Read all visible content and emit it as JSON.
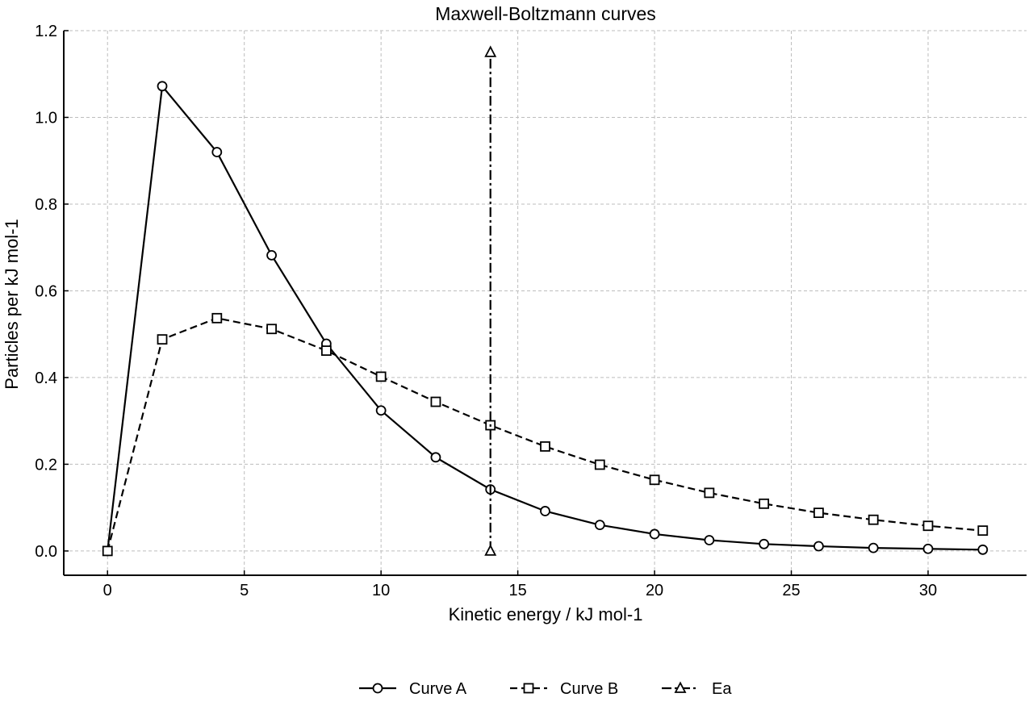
{
  "chart_data": {
    "type": "line",
    "title": "Maxwell-Boltzmann curves",
    "xlabel": "Kinetic energy / kJ mol-1",
    "ylabel": "Particles per kJ mol-1",
    "xlim": [
      -1.6,
      33.6
    ],
    "ylim": [
      -0.056,
      1.2
    ],
    "xticks": [
      0,
      5,
      10,
      15,
      20,
      25,
      30
    ],
    "yticks": [
      0.0,
      0.2,
      0.4,
      0.6,
      0.8,
      1.0,
      1.2
    ],
    "xtick_labels": [
      "0",
      "5",
      "10",
      "15",
      "20",
      "25",
      "30"
    ],
    "ytick_labels": [
      "0.0",
      "0.2",
      "0.4",
      "0.6",
      "0.8",
      "1.0",
      "1.2"
    ],
    "grid": true,
    "legend_position": "bottom-center",
    "series": [
      {
        "name": "Curve A",
        "marker": "circle",
        "linestyle": "solid",
        "x": [
          0,
          2,
          4,
          6,
          8,
          10,
          12,
          14,
          16,
          18,
          20,
          22,
          24,
          26,
          28,
          30,
          32
        ],
        "y": [
          0.0,
          1.072,
          0.92,
          0.682,
          0.478,
          0.324,
          0.216,
          0.142,
          0.092,
          0.06,
          0.039,
          0.025,
          0.016,
          0.011,
          0.007,
          0.005,
          0.003
        ]
      },
      {
        "name": "Curve B",
        "marker": "square",
        "linestyle": "dashed",
        "x": [
          0,
          2,
          4,
          6,
          8,
          10,
          12,
          14,
          16,
          18,
          20,
          22,
          24,
          26,
          28,
          30,
          32
        ],
        "y": [
          0.0,
          0.488,
          0.537,
          0.512,
          0.462,
          0.402,
          0.344,
          0.29,
          0.241,
          0.199,
          0.164,
          0.134,
          0.109,
          0.088,
          0.072,
          0.058,
          0.047
        ]
      },
      {
        "name": "Ea",
        "marker": "triangle",
        "linestyle": "dashdot",
        "x": [
          14,
          14
        ],
        "y": [
          0.0,
          1.15
        ]
      }
    ]
  }
}
